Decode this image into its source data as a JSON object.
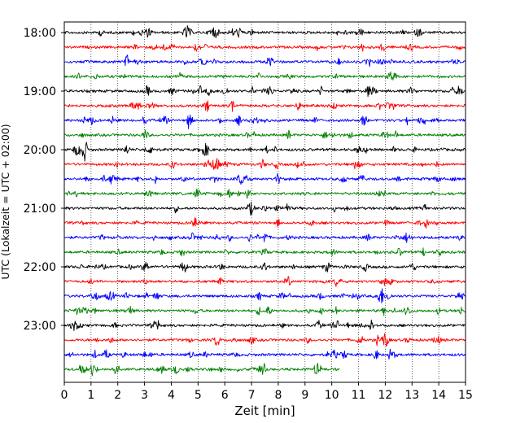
{
  "chart_data": {
    "type": "line",
    "subtype": "helicorder / seismogram drum plot",
    "title": "",
    "xlabel": "Zeit  [min]",
    "ylabel": "UTC (Lokalzeit = UTC + 02:00)",
    "xlim": [
      0,
      15
    ],
    "x_ticks": [
      "0",
      "1",
      "2",
      "3",
      "4",
      "5",
      "6",
      "7",
      "8",
      "9",
      "10",
      "11",
      "12",
      "13",
      "14",
      "15"
    ],
    "y_tick_labels": [
      "18:00",
      "19:00",
      "20:00",
      "21:00",
      "22:00",
      "23:00"
    ],
    "minutes_per_line": 15,
    "lines_per_hour": 4,
    "grid": "vertical dotted gridlines at each minute",
    "line_colors": [
      "#000000",
      "#ff0000",
      "#0000ff",
      "#008000"
    ],
    "traces": [
      {
        "start": "18:00",
        "end_min": 15
      },
      {
        "start": "18:15",
        "end_min": 15
      },
      {
        "start": "18:30",
        "end_min": 15
      },
      {
        "start": "18:45",
        "end_min": 15
      },
      {
        "start": "19:00",
        "end_min": 15
      },
      {
        "start": "19:15",
        "end_min": 15
      },
      {
        "start": "19:30",
        "end_min": 15
      },
      {
        "start": "19:45",
        "end_min": 15
      },
      {
        "start": "20:00",
        "end_min": 15
      },
      {
        "start": "20:15",
        "end_min": 15
      },
      {
        "start": "20:30",
        "end_min": 15
      },
      {
        "start": "20:45",
        "end_min": 15
      },
      {
        "start": "21:00",
        "end_min": 15
      },
      {
        "start": "21:15",
        "end_min": 15
      },
      {
        "start": "21:30",
        "end_min": 15
      },
      {
        "start": "21:45",
        "end_min": 15
      },
      {
        "start": "22:00",
        "end_min": 15
      },
      {
        "start": "22:15",
        "end_min": 15
      },
      {
        "start": "22:30",
        "end_min": 15
      },
      {
        "start": "22:45",
        "end_min": 15
      },
      {
        "start": "23:00",
        "end_min": 15
      },
      {
        "start": "23:15",
        "end_min": 15
      },
      {
        "start": "23:30",
        "end_min": 15
      },
      {
        "start": "23:45",
        "end_min": 10.3
      }
    ]
  }
}
